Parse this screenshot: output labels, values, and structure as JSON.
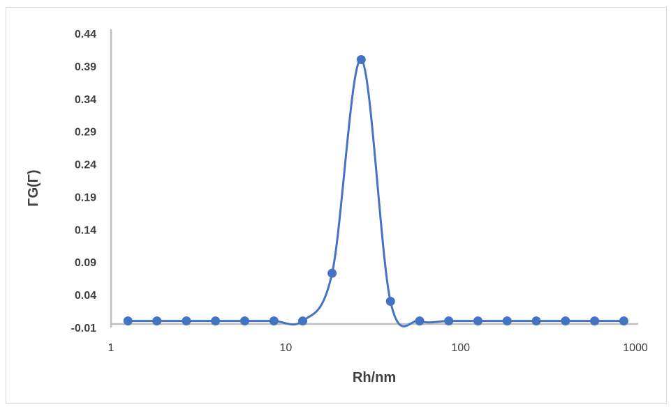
{
  "chart_data": {
    "type": "scatter",
    "title": "",
    "xlabel": "Rh/nm",
    "ylabel": "ΓG(Γ)",
    "x_scale": "log",
    "xlim": [
      1,
      1000
    ],
    "ylim": [
      -0.01,
      0.44
    ],
    "x_ticks": [
      1,
      10,
      100,
      1000
    ],
    "x_tick_labels": [
      "1",
      "10",
      "100",
      "1000"
    ],
    "y_ticks": [
      -0.01,
      0.04,
      0.09,
      0.14,
      0.19,
      0.24,
      0.29,
      0.34,
      0.39,
      0.44
    ],
    "y_tick_labels": [
      "-0.01",
      "0.04",
      "0.09",
      "0.14",
      "0.19",
      "0.24",
      "0.29",
      "0.34",
      "0.39",
      "0.44"
    ],
    "grid": false,
    "legend": "none",
    "line": "smoothed",
    "color": "#4472c4",
    "axis_color": "#bfbfbf",
    "series": [
      {
        "x": [
          1.25,
          1.83,
          2.7,
          3.96,
          5.82,
          8.55,
          12.5,
          18.4,
          27.0,
          39.7,
          58.3,
          85.6,
          125.7,
          184.6,
          271.1,
          398.1,
          584.7,
          858.7
        ],
        "y": [
          0.0,
          0.0,
          0.0,
          0.0,
          0.0,
          0.0,
          0.0,
          0.073,
          0.4,
          0.03,
          0.0,
          0.0,
          0.0,
          0.0,
          0.0,
          0.0,
          0.0,
          0.0
        ]
      }
    ]
  }
}
